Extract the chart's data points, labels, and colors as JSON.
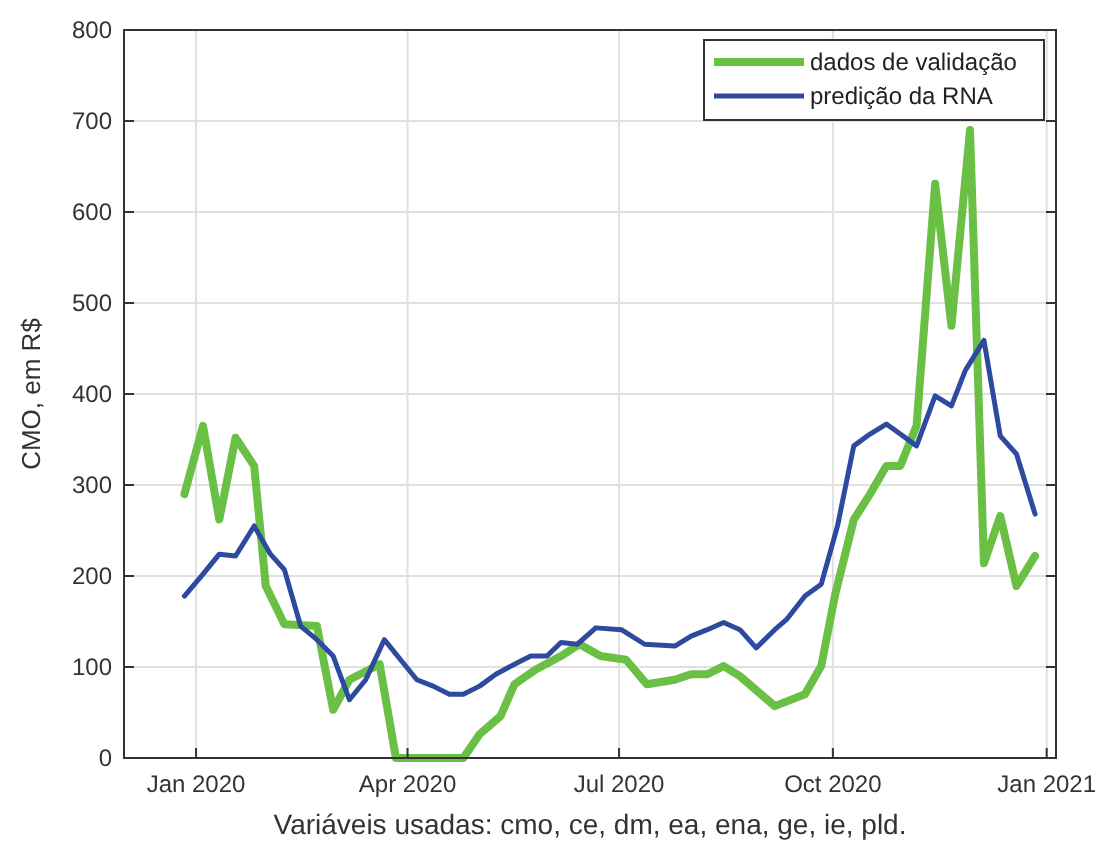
{
  "chart_data": {
    "type": "line",
    "xlabel": "Variáveis usadas: cmo, ce, dm, ea, ena, ge, ie, pld.",
    "ylabel": "CMO, em R$",
    "xlim": [
      "2019-12-01",
      "2021-01-05"
    ],
    "xticks": [
      {
        "value": "2020-01-01",
        "label": "Jan 2020"
      },
      {
        "value": "2020-04-01",
        "label": "Apr 2020"
      },
      {
        "value": "2020-07-01",
        "label": "Jul 2020"
      },
      {
        "value": "2020-10-01",
        "label": "Oct 2020"
      },
      {
        "value": "2021-01-01",
        "label": "Jan 2021"
      }
    ],
    "ylim": [
      0,
      800
    ],
    "yticks": [
      0,
      100,
      200,
      300,
      400,
      500,
      600,
      700,
      800
    ],
    "grid": true,
    "legend": "top right",
    "line_style": "solid",
    "marker": "none",
    "series": [
      {
        "name": "dados de validação",
        "color": "#6abf45",
        "x": [
          "2019-12-27",
          "2020-01-04",
          "2020-01-11",
          "2020-01-18",
          "2020-01-26",
          "2020-01-31",
          "2020-02-08",
          "2020-02-22",
          "2020-02-29",
          "2020-03-07",
          "2020-03-20",
          "2020-03-27",
          "2020-04-25",
          "2020-05-02",
          "2020-05-11",
          "2020-05-17",
          "2020-05-26",
          "2020-06-06",
          "2020-06-14",
          "2020-06-23",
          "2020-07-04",
          "2020-07-13",
          "2020-07-25",
          "2020-08-01",
          "2020-08-08",
          "2020-08-15",
          "2020-08-22",
          "2020-09-06",
          "2020-09-19",
          "2020-09-26",
          "2020-10-02",
          "2020-10-10",
          "2020-10-17",
          "2020-10-24",
          "2020-10-30",
          "2020-11-06",
          "2020-11-14",
          "2020-11-21",
          "2020-11-29",
          "2020-12-05",
          "2020-12-12",
          "2020-12-19",
          "2020-12-27"
        ],
        "values": [
          290,
          365,
          262,
          352,
          321,
          189,
          147,
          145,
          53,
          86,
          103,
          0,
          0,
          26,
          46,
          81,
          97,
          112,
          125,
          112,
          108,
          81,
          86,
          92,
          92,
          101,
          90,
          57,
          70,
          101,
          180,
          262,
          290,
          321,
          321,
          365,
          631,
          475,
          690,
          214,
          266,
          189,
          222
        ]
      },
      {
        "name": "predição da RNA",
        "color": "#2e4a9e",
        "x": [
          "2019-12-27",
          "2020-01-04",
          "2020-01-11",
          "2020-01-18",
          "2020-01-26",
          "2020-02-02",
          "2020-02-08",
          "2020-02-15",
          "2020-02-22",
          "2020-02-29",
          "2020-03-07",
          "2020-03-14",
          "2020-03-22",
          "2020-03-29",
          "2020-04-05",
          "2020-04-12",
          "2020-04-19",
          "2020-04-25",
          "2020-05-02",
          "2020-05-09",
          "2020-05-17",
          "2020-05-24",
          "2020-05-31",
          "2020-06-06",
          "2020-06-13",
          "2020-06-21",
          "2020-07-02",
          "2020-07-12",
          "2020-07-25",
          "2020-08-01",
          "2020-08-08",
          "2020-08-15",
          "2020-08-22",
          "2020-08-29",
          "2020-09-06",
          "2020-09-11",
          "2020-09-19",
          "2020-09-26",
          "2020-10-03",
          "2020-10-10",
          "2020-10-17",
          "2020-10-24",
          "2020-10-30",
          "2020-11-06",
          "2020-11-14",
          "2020-11-21",
          "2020-11-27",
          "2020-12-05",
          "2020-12-12",
          "2020-12-19",
          "2020-12-27"
        ],
        "values": [
          178,
          202,
          224,
          222,
          255,
          224,
          207,
          145,
          130,
          112,
          64,
          86,
          130,
          108,
          86,
          79,
          70,
          70,
          79,
          92,
          103,
          112,
          112,
          127,
          125,
          143,
          141,
          125,
          123,
          134,
          141,
          149,
          141,
          121,
          141,
          152,
          178,
          191,
          255,
          343,
          356,
          367,
          356,
          343,
          398,
          387,
          426,
          459,
          354,
          334,
          268
        ]
      }
    ]
  }
}
